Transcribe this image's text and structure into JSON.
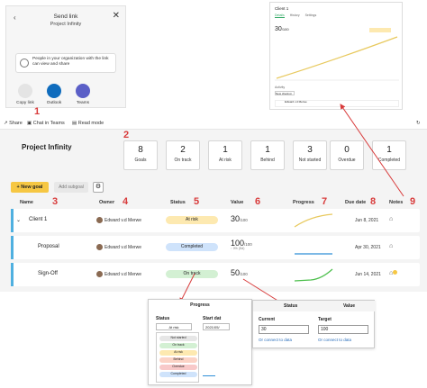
{
  "send_link": {
    "title": "Send link",
    "subtitle": "Project Infinity",
    "close_glyph": "✕",
    "back_glyph": "‹",
    "permission_text": "People in your organization with the link can view and share",
    "options": [
      {
        "label": "Copy link",
        "icon": "link-icon"
      },
      {
        "label": "Outlook",
        "icon": "outlook-icon"
      },
      {
        "label": "Teams",
        "icon": "teams-icon"
      }
    ]
  },
  "client_panel": {
    "title": "Client 1",
    "tabs": [
      "Details",
      "History",
      "Settings"
    ],
    "value": "30",
    "value_unit": "/100",
    "activity_label": "Activity",
    "new_button": "New check-in",
    "activity_row": "Edward v.d Merwe"
  },
  "toolbar": {
    "share": "Share",
    "chat": "Chat in Teams",
    "read_mode": "Read mode"
  },
  "board": {
    "project_title": "Project Infinity",
    "stats": [
      {
        "value": "8",
        "label": "Goals"
      },
      {
        "value": "2",
        "label": "On track"
      },
      {
        "value": "1",
        "label": "At risk"
      },
      {
        "value": "1",
        "label": "Behind"
      },
      {
        "value": "3",
        "label": "Not started"
      },
      {
        "value": "0",
        "label": "Overdue"
      },
      {
        "value": "1",
        "label": "Completed"
      }
    ],
    "new_goal": "+ New goal",
    "add_subgoal": "Add subgoal",
    "headers": {
      "name": "Name",
      "owner": "Owner",
      "status": "Status",
      "value": "Value",
      "progress": "Progress",
      "due_date": "Due date",
      "notes": "Notes"
    },
    "rows": [
      {
        "name": "Client 1",
        "owner": "Edward v.d Merwe",
        "status": "At risk",
        "value": "30",
        "unit": "/100",
        "sub": "",
        "due": "Jun 8, 2021"
      },
      {
        "name": "Proposal",
        "owner": "Edward v.d Merwe",
        "status": "Completed",
        "value": "100",
        "unit": "/100",
        "sub": "↑ 0% (Sd)",
        "due": "Apr 30, 2021"
      },
      {
        "name": "Sign-Off",
        "owner": "Edward v.d Merwe",
        "status": "On track",
        "value": "50",
        "unit": "/100",
        "sub": "",
        "due": "Jun 14, 2021"
      }
    ]
  },
  "annotations": [
    "1",
    "2",
    "3",
    "4",
    "5",
    "6",
    "7",
    "8",
    "9"
  ],
  "progress_popup": {
    "title": "Progress",
    "status_label": "Status",
    "start_label": "Start dat",
    "selected": "At risk",
    "start_value": "2021/05/",
    "options": [
      "Not started",
      "On track",
      "At risk",
      "Behind",
      "Overdue",
      "Completed"
    ]
  },
  "status_value_popup": {
    "status_header": "Status",
    "value_header": "Value",
    "current_label": "Current",
    "target_label": "Target",
    "current_value": "30",
    "target_value": "100",
    "link_text": "Or connect to data"
  },
  "colors": {
    "at_risk": "#fde9b0",
    "completed": "#cfe3fb",
    "on_track": "#d3f0d3",
    "not_started": "#e6e6e6",
    "behind": "#fbd3c6",
    "overdue": "#f8c9c9",
    "accent_yellow": "#f6c743",
    "annotation_red": "#d83b3b",
    "row_bar": "#4fb0e0"
  }
}
